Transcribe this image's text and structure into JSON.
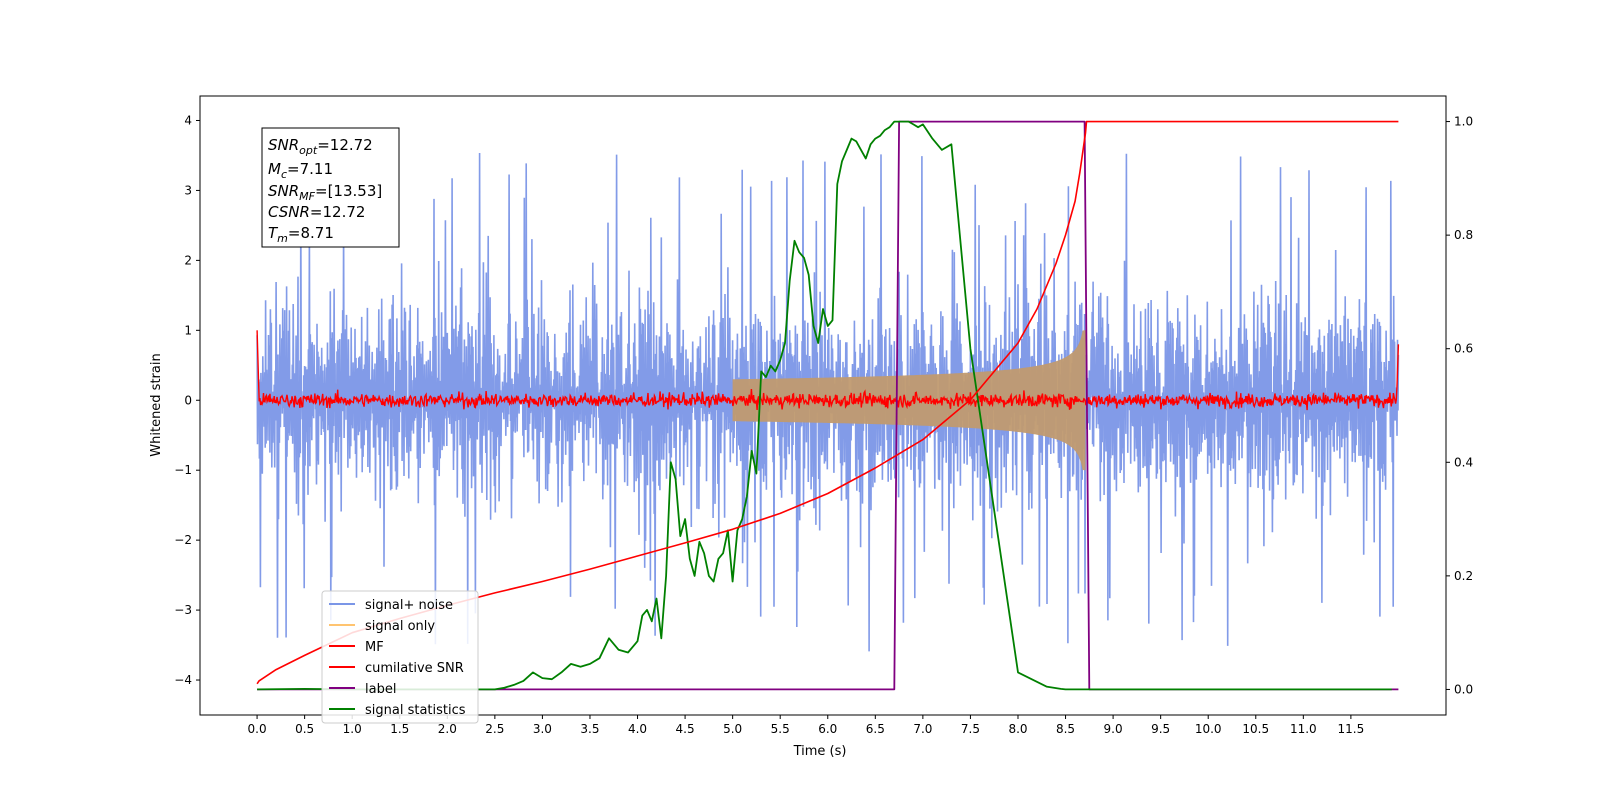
{
  "chart_data": {
    "type": "line",
    "xlabel": "Time (s)",
    "ylabel": "Whitened strain",
    "xlim": [
      -0.6,
      12.5
    ],
    "ylim": [
      -4.5,
      4.35
    ],
    "y2lim": [
      -0.045,
      1.045
    ],
    "x_ticks": [
      "0.0",
      "0.5",
      "1.0",
      "1.5",
      "2.0",
      "2.5",
      "3.0",
      "3.5",
      "4.0",
      "4.5",
      "5.0",
      "5.5",
      "6.0",
      "6.5",
      "7.0",
      "7.5",
      "8.0",
      "8.5",
      "9.0",
      "9.5",
      "10.0",
      "10.5",
      "11.0",
      "11.5"
    ],
    "y_ticks": [
      "4",
      "3",
      "2",
      "1",
      "0",
      "−1",
      "−2",
      "−3",
      "−4"
    ],
    "y2_ticks": [
      "1.0",
      "0.8",
      "0.6",
      "0.4",
      "0.2",
      "0.0"
    ],
    "annotation": {
      "snr_opt": "=12.72",
      "mc": "=7.11",
      "snr_mf": "=[13.53]",
      "csnr": "=12.72",
      "tm": "=8.71"
    },
    "series": [
      {
        "name": "signal+ noise",
        "color": "#7b96e7",
        "axis": "left",
        "kind": "noise",
        "t_start": 0.0,
        "t_end": 12.0,
        "envelope": 2.1
      },
      {
        "name": "signal only",
        "color": "#ffc470",
        "axis": "left",
        "kind": "chirp",
        "t_start": 5.0,
        "t_merger": 8.71,
        "amplitude_at_merger": 1.0
      },
      {
        "name": "MF",
        "color": "#ff0000",
        "axis": "left",
        "kind": "mf_noise",
        "t_start": 0.0,
        "t_end": 12.0
      },
      {
        "name": "cumilative SNR",
        "color": "#ff0000",
        "axis": "right",
        "x": [
          0.0,
          0.02,
          0.2,
          0.5,
          1.0,
          1.5,
          2.0,
          2.5,
          3.0,
          3.5,
          4.0,
          4.5,
          5.0,
          5.5,
          6.0,
          6.5,
          7.0,
          7.5,
          8.0,
          8.2,
          8.4,
          8.5,
          8.6,
          8.65,
          8.71,
          8.72,
          12.0
        ],
        "y": [
          0.01,
          0.015,
          0.035,
          0.06,
          0.1,
          0.125,
          0.148,
          0.17,
          0.19,
          0.212,
          0.235,
          0.258,
          0.282,
          0.31,
          0.345,
          0.39,
          0.44,
          0.51,
          0.61,
          0.67,
          0.75,
          0.8,
          0.86,
          0.91,
          0.98,
          1.0,
          1.0
        ]
      },
      {
        "name": "label",
        "color": "#800080",
        "axis": "right",
        "x": [
          0.0,
          6.7,
          6.75,
          8.7,
          8.75,
          12.0
        ],
        "y": [
          0.0,
          0.0,
          1.0,
          1.0,
          0.0,
          0.0
        ]
      },
      {
        "name": "signal statistics",
        "color": "#008000",
        "axis": "right",
        "x": [
          0.0,
          0.5,
          1.0,
          1.5,
          2.0,
          2.5,
          2.6,
          2.7,
          2.8,
          2.9,
          3.0,
          3.1,
          3.2,
          3.3,
          3.4,
          3.5,
          3.6,
          3.7,
          3.8,
          3.9,
          4.0,
          4.05,
          4.1,
          4.15,
          4.2,
          4.25,
          4.3,
          4.35,
          4.4,
          4.45,
          4.5,
          4.55,
          4.6,
          4.65,
          4.7,
          4.75,
          4.8,
          4.85,
          4.9,
          4.95,
          5.0,
          5.05,
          5.1,
          5.15,
          5.2,
          5.25,
          5.3,
          5.35,
          5.4,
          5.45,
          5.5,
          5.55,
          5.6,
          5.65,
          5.7,
          5.75,
          5.8,
          5.85,
          5.9,
          5.95,
          6.0,
          6.05,
          6.1,
          6.15,
          6.2,
          6.25,
          6.3,
          6.35,
          6.4,
          6.45,
          6.5,
          6.55,
          6.6,
          6.65,
          6.7,
          6.75,
          6.8,
          6.85,
          6.9,
          6.95,
          7.0,
          7.1,
          7.2,
          7.3,
          7.5,
          8.0,
          8.3,
          8.45,
          8.5,
          8.55,
          8.6,
          8.65,
          8.7,
          8.75,
          8.8,
          8.85,
          8.9,
          9.0,
          9.2,
          9.5,
          10.0,
          11.0,
          11.93
        ],
        "y": [
          0.0,
          0.001,
          0.0,
          0.0,
          0.0,
          0.0,
          0.003,
          0.008,
          0.015,
          0.03,
          0.02,
          0.018,
          0.03,
          0.045,
          0.04,
          0.045,
          0.055,
          0.09,
          0.07,
          0.065,
          0.085,
          0.13,
          0.14,
          0.12,
          0.16,
          0.09,
          0.2,
          0.4,
          0.37,
          0.27,
          0.3,
          0.23,
          0.2,
          0.26,
          0.24,
          0.2,
          0.19,
          0.23,
          0.24,
          0.28,
          0.19,
          0.28,
          0.3,
          0.34,
          0.42,
          0.38,
          0.56,
          0.55,
          0.57,
          0.56,
          0.58,
          0.61,
          0.72,
          0.79,
          0.77,
          0.76,
          0.73,
          0.64,
          0.61,
          0.67,
          0.64,
          0.65,
          0.89,
          0.93,
          0.95,
          0.97,
          0.965,
          0.95,
          0.935,
          0.96,
          0.97,
          0.975,
          0.985,
          0.99,
          1.0,
          1.0,
          1.0,
          1.0,
          0.995,
          0.99,
          0.995,
          0.97,
          0.95,
          0.96,
          0.6,
          0.03,
          0.005,
          0.001,
          0.0,
          0.0,
          0.0,
          0.0,
          0.0,
          0.0,
          0.0,
          0.0,
          0.0,
          0.0,
          0.0,
          0.0,
          0.0,
          0.0,
          0.0
        ]
      }
    ],
    "legend": {
      "position": "lower-left"
    }
  }
}
